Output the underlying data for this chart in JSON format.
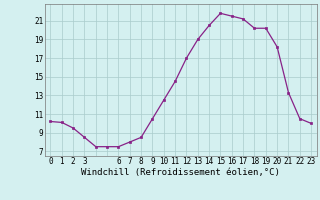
{
  "x": [
    0,
    1,
    2,
    3,
    4,
    5,
    6,
    7,
    8,
    9,
    10,
    11,
    12,
    13,
    14,
    15,
    16,
    17,
    18,
    19,
    20,
    21,
    22,
    23
  ],
  "y": [
    10.2,
    10.1,
    9.5,
    8.5,
    7.5,
    7.5,
    7.5,
    8.0,
    8.5,
    10.5,
    12.5,
    14.5,
    17.0,
    19.0,
    20.5,
    21.8,
    21.5,
    21.2,
    20.2,
    20.2,
    18.2,
    13.3,
    10.5,
    10.0
  ],
  "line_color": "#882288",
  "marker_color": "#882288",
  "bg_color": "#d4f0f0",
  "grid_color": "#aacccc",
  "xlabel": "Windchill (Refroidissement éolien,°C)",
  "yticks": [
    7,
    9,
    11,
    13,
    15,
    17,
    19,
    21
  ],
  "xtick_labels": [
    "0",
    "1",
    "2",
    "3",
    "",
    "",
    "6",
    "7",
    "8",
    "9",
    "10",
    "11",
    "12",
    "13",
    "14",
    "15",
    "16",
    "17",
    "18",
    "19",
    "20",
    "21",
    "22",
    "23"
  ],
  "ylim": [
    6.5,
    22.8
  ],
  "xlim": [
    -0.5,
    23.5
  ],
  "tick_fontsize": 5.5,
  "xlabel_fontsize": 6.5
}
